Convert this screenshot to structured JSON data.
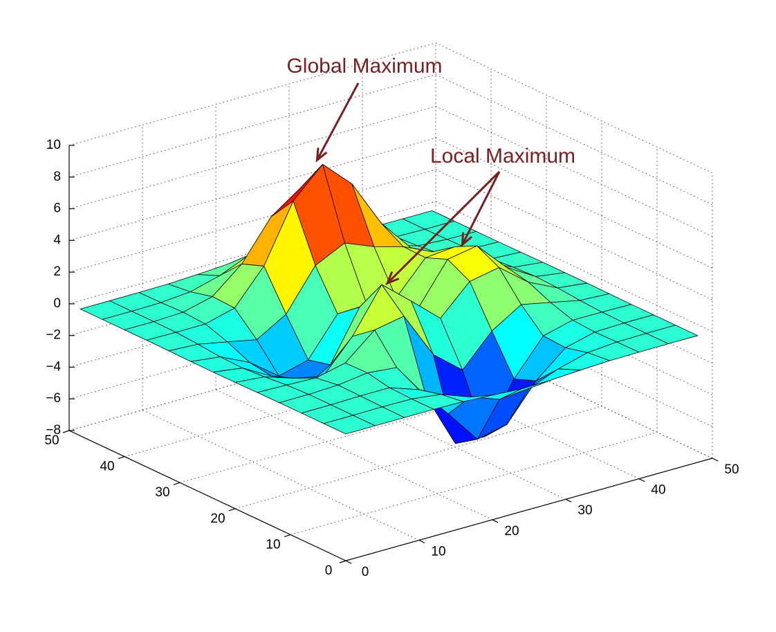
{
  "chart_data": {
    "type": "surface",
    "x": [
      0,
      4,
      8,
      12,
      16,
      20,
      24,
      28,
      32,
      36,
      40,
      44,
      48
    ],
    "y": [
      0,
      4,
      8,
      12,
      16,
      20,
      24,
      28,
      32,
      36,
      40,
      44,
      48
    ],
    "z": [
      [
        0,
        0,
        0,
        0,
        -0.03,
        -0.14,
        -0.25,
        -0.22,
        -0.11,
        -0.03,
        -0.01,
        0,
        0
      ],
      [
        0,
        0,
        0.02,
        0,
        -0.23,
        -0.91,
        -1.57,
        -1.41,
        -0.69,
        -0.18,
        -0.03,
        0,
        0
      ],
      [
        0,
        0.01,
        0.05,
        0.05,
        -0.59,
        -2.63,
        -4.75,
        -4.34,
        -2.1,
        -0.53,
        -0.06,
        0,
        0
      ],
      [
        0,
        0.01,
        0.08,
        0.33,
        0.15,
        -2.19,
        -5.68,
        -5.76,
        -2.64,
        -0.44,
        0.04,
        0.03,
        0
      ],
      [
        -0.01,
        -0.06,
        -0.13,
        0.3,
        1.86,
        2.22,
        -0.72,
        -2.22,
        -0.27,
        0.88,
        0.5,
        0.11,
        0.01
      ],
      [
        -0.03,
        -0.2,
        -0.8,
        -1.21,
        0.8,
        3.55,
        2.0,
        0.39,
        2.2,
        2.56,
        1.12,
        0.24,
        0.03
      ],
      [
        -0.04,
        -0.3,
        -1.33,
        -2.77,
        -1.65,
        1.48,
        0.98,
        0.38,
        2.94,
        3.27,
        1.41,
        0.3,
        0.03
      ],
      [
        -0.03,
        -0.25,
        -1.12,
        -2.49,
        -2.0,
        0.39,
        0.46,
        0.37,
        2.38,
        2.56,
        1.09,
        0.23,
        0.03
      ],
      [
        -0.01,
        -0.11,
        -0.48,
        -0.86,
        0.23,
        2.79,
        3.69,
        2.94,
        2.43,
        1.58,
        0.58,
        0.11,
        0.01
      ],
      [
        0,
        -0.02,
        -0.01,
        0.48,
        2.61,
        6.2,
        8.0,
        6.25,
        3.25,
        1.19,
        0.29,
        0.05,
        0
      ],
      [
        0,
        0,
        0.08,
        0.55,
        2.09,
        4.55,
        5.85,
        4.56,
        2.21,
        0.68,
        0.13,
        0.02,
        0
      ],
      [
        0,
        0,
        0.03,
        0.19,
        0.69,
        1.47,
        1.89,
        1.47,
        0.7,
        0.2,
        0.04,
        0,
        0
      ],
      [
        0,
        0,
        0.01,
        0.03,
        0.11,
        0.23,
        0.3,
        0.23,
        0.11,
        0.03,
        0.01,
        0,
        0
      ]
    ],
    "colormap": "jet",
    "edge_color": "#000000",
    "xlim": [
      0,
      50
    ],
    "ylim": [
      0,
      50
    ],
    "zlim": [
      -8,
      10
    ],
    "xticks": [
      0,
      10,
      20,
      30,
      40,
      50
    ],
    "yticks": [
      0,
      10,
      20,
      30,
      40,
      50
    ],
    "zticks": [
      {
        "value": -8,
        "label": "−8"
      },
      {
        "value": -6,
        "label": "−6"
      },
      {
        "value": -4,
        "label": "−4"
      },
      {
        "value": -2,
        "label": "−2"
      },
      0,
      2,
      4,
      6,
      8,
      10
    ],
    "grid": true,
    "annotation_color": "#7a1e1e",
    "annotations": [
      {
        "text": "Global Maximum",
        "targets": [
          [
            24,
            37,
            8.1
          ]
        ]
      },
      {
        "text": "Local Maximum",
        "targets": [
          [
            34,
            24,
            3.6
          ],
          [
            20,
            19,
            3.8
          ]
        ]
      }
    ]
  }
}
